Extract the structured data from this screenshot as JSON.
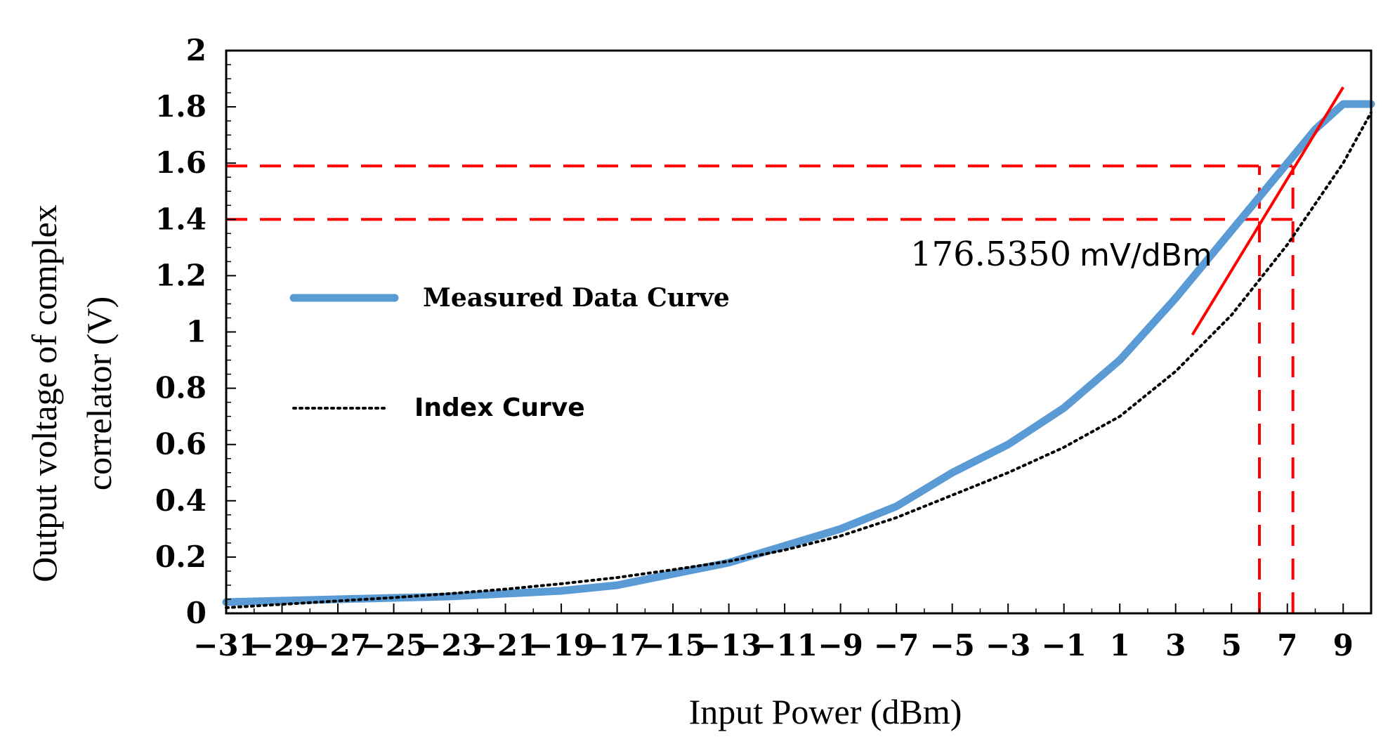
{
  "chart_data": {
    "type": "line",
    "title": "",
    "xlabel": "Input Power (dBm)",
    "ylabel_line1": "Output voltage of complex",
    "ylabel_line2": "correlator  (V)",
    "xlim": [
      -31,
      10
    ],
    "ylim": [
      0,
      2
    ],
    "grid": false,
    "x_ticks": [
      -31,
      -29,
      -27,
      -25,
      -23,
      -21,
      -19,
      -17,
      -15,
      -13,
      -11,
      -9,
      -7,
      -5,
      -3,
      -1,
      1,
      3,
      5,
      7,
      9
    ],
    "x_tick_labels": [
      "−31",
      "−29",
      "−27",
      "−25",
      "−23",
      "−21",
      "−19",
      "−17",
      "−15",
      "−13",
      "−11",
      "−9",
      "−7",
      "−5",
      "−3",
      "−1",
      "1",
      "3",
      "5",
      "7",
      "9"
    ],
    "y_ticks": [
      0,
      0.2,
      0.4,
      0.6,
      0.8,
      1,
      1.2,
      1.4,
      1.6,
      1.8,
      2
    ],
    "y_tick_labels": [
      "0",
      "0.2",
      "0.4",
      "0.6",
      "0.8",
      "1",
      "1.2",
      "1.4",
      "1.6",
      "1.8",
      "2"
    ],
    "legend_position": "left-center",
    "series": [
      {
        "name": "Measured Data Curve",
        "color": "#5b9bd5",
        "style": "solid",
        "x": [
          -31,
          -29,
          -27,
          -25,
          -23,
          -21,
          -19,
          -17,
          -15,
          -13,
          -11,
          -9,
          -7,
          -5,
          -3,
          -1,
          1,
          3,
          5,
          7,
          8,
          9,
          10
        ],
        "y": [
          0.04,
          0.045,
          0.05,
          0.055,
          0.06,
          0.07,
          0.08,
          0.1,
          0.14,
          0.18,
          0.24,
          0.3,
          0.38,
          0.5,
          0.6,
          0.73,
          0.9,
          1.12,
          1.36,
          1.6,
          1.72,
          1.81,
          1.81
        ]
      },
      {
        "name": "Index Curve",
        "color": "#000000",
        "style": "dotted",
        "x": [
          -31,
          -29,
          -27,
          -25,
          -23,
          -21,
          -19,
          -17,
          -15,
          -13,
          -11,
          -9,
          -7,
          -5,
          -3,
          -1,
          1,
          3,
          5,
          7,
          9,
          10
        ],
        "y": [
          0.02,
          0.032,
          0.044,
          0.056,
          0.07,
          0.086,
          0.105,
          0.127,
          0.155,
          0.185,
          0.225,
          0.275,
          0.34,
          0.42,
          0.5,
          0.59,
          0.7,
          0.86,
          1.06,
          1.31,
          1.6,
          1.78
        ]
      }
    ],
    "tangent_line": {
      "color": "#ff0000",
      "x": [
        3.6,
        9.0
      ],
      "y": [
        0.99,
        1.87
      ]
    },
    "reference_lines": {
      "color": "#ff0000",
      "style": "dashed",
      "y_levels": [
        1.4,
        1.59
      ],
      "x_levels": [
        6.0,
        7.2
      ]
    },
    "annotation": {
      "value": "176.5350",
      "unit": "mV/dBm",
      "at_x": -6.5,
      "at_y": 1.26
    }
  }
}
